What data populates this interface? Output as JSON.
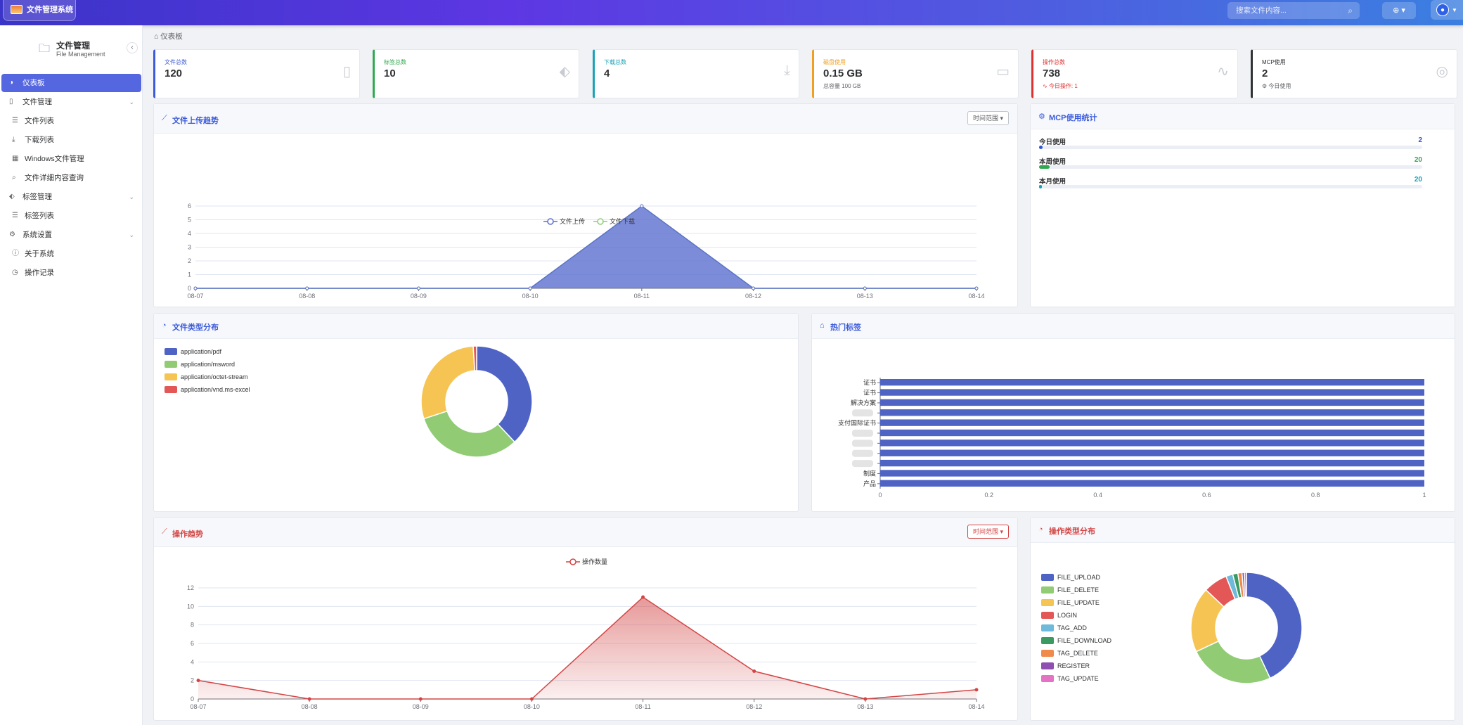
{
  "app": {
    "title": "文件管理系统",
    "brand_title": "文件管理",
    "brand_sub": "File Management"
  },
  "header": {
    "search_placeholder": "搜索文件内容...",
    "lang_icon": "globe-icon",
    "user_icon": "user-icon"
  },
  "sidebar": {
    "items": [
      {
        "label": "仪表板",
        "icon": "dashboard-icon",
        "active": true
      },
      {
        "label": "文件管理",
        "icon": "file-icon",
        "group": true
      },
      {
        "label": "文件列表",
        "icon": "list-icon",
        "sub": true
      },
      {
        "label": "下载列表",
        "icon": "download-icon",
        "sub": true
      },
      {
        "label": "Windows文件管理",
        "icon": "windows-icon",
        "sub": true
      },
      {
        "label": "文件详细内容查询",
        "icon": "search-icon",
        "sub": true
      },
      {
        "label": "标签管理",
        "icon": "tag-icon",
        "group": true
      },
      {
        "label": "标签列表",
        "icon": "list-icon",
        "sub": true
      },
      {
        "label": "系统设置",
        "icon": "settings-icon",
        "group": true
      },
      {
        "label": "关于系统",
        "icon": "info-icon",
        "sub": true
      },
      {
        "label": "操作记录",
        "icon": "clock-icon",
        "sub": true
      }
    ]
  },
  "breadcrumb": "仪表板",
  "stats": [
    {
      "label": "文件总数",
      "value": "120",
      "sub": "",
      "color": "#3b5bdb"
    },
    {
      "label": "标签总数",
      "value": "10",
      "sub": "",
      "color": "#2fa84f"
    },
    {
      "label": "下载总数",
      "value": "4",
      "sub": "",
      "color": "#17a2b8"
    },
    {
      "label": "磁盘使用",
      "value": "0.15 GB",
      "sub": "总容量 100 GB",
      "color": "#f0a020"
    },
    {
      "label": "操作总数",
      "value": "738",
      "sub": "今日操作: 1",
      "color": "#e03131"
    },
    {
      "label": "MCP使用",
      "value": "2",
      "sub": "今日使用",
      "color": "#303133"
    }
  ],
  "upload_trend": {
    "title": "文件上传趋势",
    "range_label": "时间范围"
  },
  "mcp": {
    "title": "MCP使用统计",
    "rows": [
      {
        "label": "今日使用",
        "value": "2",
        "color": "#2f55d4",
        "pct": 0.01
      },
      {
        "label": "本周使用",
        "value": "20",
        "color": "#2fa84f",
        "pct": 0.028
      },
      {
        "label": "本月使用",
        "value": "20",
        "color": "#17a2b8",
        "pct": 0.008
      }
    ]
  },
  "filetype": {
    "title": "文件类型分布"
  },
  "hottags": {
    "title": "热门标签"
  },
  "op_trend": {
    "title": "操作趋势",
    "range_label": "时间范围"
  },
  "optype": {
    "title": "操作类型分布"
  },
  "chart_data": [
    {
      "type": "area",
      "title": "文件上传趋势",
      "x": [
        "08-07",
        "08-08",
        "08-09",
        "08-10",
        "08-11",
        "08-12",
        "08-13",
        "08-14"
      ],
      "series": [
        {
          "name": "文件上传",
          "values": [
            0,
            0,
            0,
            0,
            6,
            0,
            0,
            0
          ],
          "color": "#5b6fd0"
        },
        {
          "name": "文件下载",
          "values": [
            0,
            0,
            0,
            0,
            6,
            0,
            0,
            0
          ],
          "color": "#91cc75"
        }
      ],
      "ylim": [
        0,
        6
      ],
      "yticks": [
        0,
        1,
        2,
        3,
        4,
        5,
        6
      ]
    },
    {
      "type": "pie",
      "title": "文件类型分布",
      "labels": [
        "application/pdf",
        "application/msword",
        "application/octet-stream",
        "application/vnd.ms-excel"
      ],
      "values": [
        38,
        32,
        29,
        1
      ],
      "colors": [
        "#4e63c4",
        "#91cc75",
        "#f6c453",
        "#e35757"
      ]
    },
    {
      "type": "bar",
      "title": "热门标签",
      "orientation": "horizontal",
      "categories": [
        "产品",
        "制度",
        "",
        "",
        "",
        "",
        "支付国际证书",
        "",
        "解决方案",
        "证书",
        "证书"
      ],
      "values": [
        1,
        1,
        1,
        1,
        1,
        1,
        1,
        1,
        1,
        1,
        1
      ],
      "xlim": [
        0,
        1
      ],
      "xticks": [
        "0",
        "0.2",
        "0.4",
        "0.6",
        "0.8",
        "1"
      ],
      "color": "#4e63c4"
    },
    {
      "type": "area",
      "title": "操作趋势",
      "x": [
        "08-07",
        "08-08",
        "08-09",
        "08-10",
        "08-11",
        "08-12",
        "08-13",
        "08-14"
      ],
      "series": [
        {
          "name": "操作数量",
          "values": [
            2,
            0,
            0,
            0,
            11,
            3,
            0,
            1
          ],
          "color": "#d34545"
        }
      ],
      "ylim": [
        0,
        12
      ],
      "yticks": [
        0,
        2,
        4,
        6,
        8,
        10,
        12
      ]
    },
    {
      "type": "pie",
      "title": "操作类型分布",
      "labels": [
        "FILE_UPLOAD",
        "FILE_DELETE",
        "FILE_UPDATE",
        "LOGIN",
        "TAG_ADD",
        "FILE_DOWNLOAD",
        "TAG_DELETE",
        "REGISTER",
        "TAG_UPDATE"
      ],
      "values": [
        43,
        25,
        19,
        7,
        2,
        1.5,
        1.2,
        0.7,
        0.6
      ],
      "colors": [
        "#4e63c4",
        "#91cc75",
        "#f6c453",
        "#e35757",
        "#6fb9da",
        "#3b9a62",
        "#f08a4b",
        "#8e4fb0",
        "#e573c4"
      ]
    }
  ]
}
